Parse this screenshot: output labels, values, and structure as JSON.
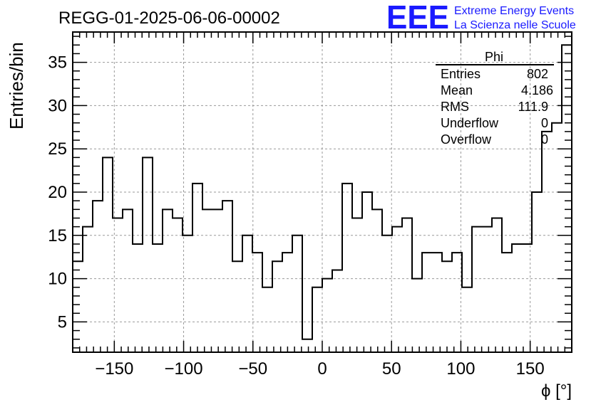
{
  "header": {
    "run_title": "REGG-01-2025-06-06-00002",
    "logo_text": "EEE",
    "logo_line1": "Extreme Energy Events",
    "logo_line2": "La Scienza nelle Scuole"
  },
  "stats_box": {
    "title": "Phi",
    "rows": [
      {
        "label": "Entries",
        "value": "802"
      },
      {
        "label": "Mean",
        "value": "4.186"
      },
      {
        "label": "RMS",
        "value": "111.9"
      },
      {
        "label": "Underflow",
        "value": "0"
      },
      {
        "label": "Overflow",
        "value": "0"
      }
    ]
  },
  "colors": {
    "logo": "#1a1aff",
    "line": "#000000",
    "grid": "#999999"
  },
  "chart_data": {
    "type": "histogram",
    "title": "REGG-01-2025-06-06-00002",
    "xlabel": "ϕ [°]",
    "ylabel": "Entries/bin",
    "xlim": [
      -180,
      180
    ],
    "ylim": [
      1.5,
      38.5
    ],
    "bin_width": 7.2,
    "x_ticks": [
      -150,
      -100,
      -50,
      0,
      50,
      100,
      150
    ],
    "x_tick_labels": [
      "−150",
      "−100",
      "−50",
      "0",
      "50",
      "100",
      "150"
    ],
    "y_ticks": [
      5,
      10,
      15,
      20,
      25,
      30,
      35
    ],
    "y_tick_labels": [
      "5",
      "10",
      "15",
      "20",
      "25",
      "30",
      "35"
    ],
    "grid": true,
    "values": [
      12,
      16,
      19,
      24,
      17,
      18,
      14,
      24,
      14,
      18,
      17,
      15,
      21,
      18,
      18,
      19,
      12,
      15,
      13,
      9,
      12,
      13,
      15,
      3,
      9,
      10,
      11,
      21,
      17,
      20,
      18,
      15,
      16,
      17,
      10,
      13,
      13,
      12,
      13,
      9,
      16,
      16,
      17,
      13,
      14,
      14,
      20,
      27,
      28,
      37
    ]
  }
}
